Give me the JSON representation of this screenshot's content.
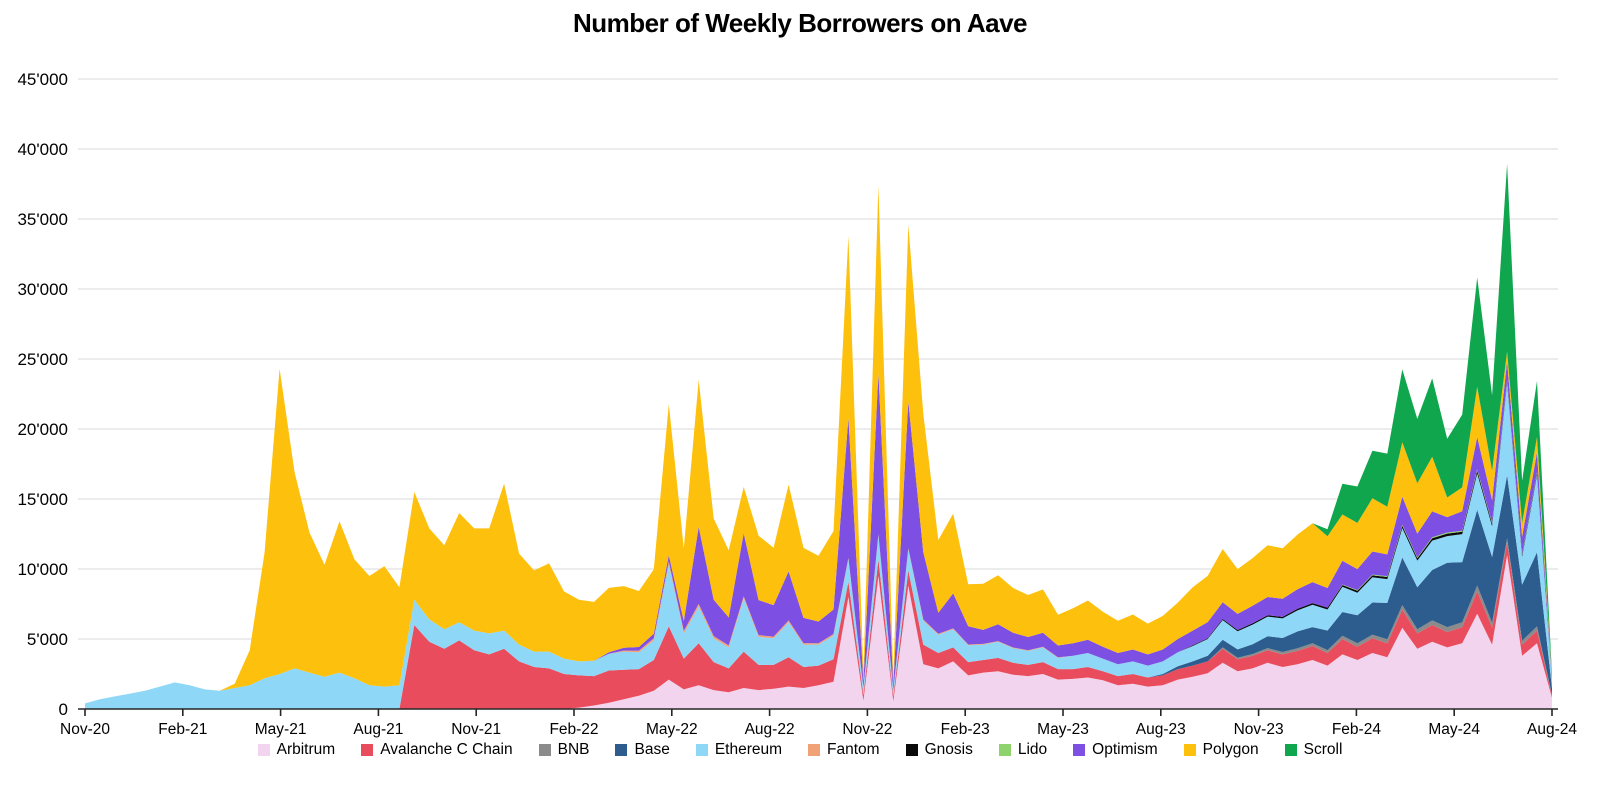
{
  "chart_data": {
    "type": "area",
    "stacked": true,
    "title": "Number of Weekly Borrowers on Aave",
    "x_unit": "week",
    "n_points": 99,
    "x_range": [
      "Nov-20",
      "Aug-24"
    ],
    "x_tick_labels": [
      "Nov-20",
      "Feb-21",
      "May-21",
      "Aug-21",
      "Nov-21",
      "Feb-22",
      "May-22",
      "Aug-22",
      "Nov-22",
      "Feb-23",
      "May-23",
      "Aug-23",
      "Nov-23",
      "Feb-24",
      "May-24",
      "Aug-24"
    ],
    "y_axis": {
      "min": 0,
      "max": 45000,
      "step": 5000,
      "tick_format": "apostrophe-thousands"
    },
    "grid": "horizontal",
    "legend_position": "bottom",
    "series": [
      {
        "name": "Arbitrum",
        "color": "#f2d4ee",
        "values": [
          0,
          0,
          0,
          0,
          0,
          0,
          0,
          0,
          0,
          0,
          0,
          0,
          0,
          0,
          0,
          0,
          0,
          0,
          0,
          0,
          0,
          0,
          0,
          0,
          0,
          0,
          0,
          0,
          0,
          0,
          0,
          0,
          0,
          100,
          250,
          450,
          700,
          950,
          1300,
          2100,
          1400,
          1700,
          1350,
          1200,
          1500,
          1350,
          1450,
          1600,
          1500,
          1700,
          1950,
          8000,
          600,
          9500,
          550,
          8800,
          3200,
          2900,
          3400,
          2400,
          2600,
          2700,
          2450,
          2350,
          2500,
          2100,
          2150,
          2250,
          2050,
          1700,
          1800,
          1600,
          1700,
          2100,
          2300,
          2550,
          3300,
          2700,
          2900,
          3300,
          3000,
          3200,
          3500,
          3100,
          3900,
          3500,
          4000,
          3700,
          5800,
          4300,
          4800,
          4400,
          4700,
          6800,
          4600,
          11000,
          3800,
          4700,
          800
        ]
      },
      {
        "name": "Avalanche C Chain",
        "color": "#e94d5d",
        "values": [
          0,
          0,
          0,
          0,
          0,
          0,
          0,
          0,
          0,
          0,
          0,
          0,
          0,
          0,
          0,
          0,
          0,
          0,
          0,
          0,
          0,
          0,
          6000,
          4800,
          4300,
          4900,
          4200,
          3900,
          4300,
          3400,
          3000,
          2900,
          2500,
          2300,
          2100,
          2300,
          2100,
          1900,
          2200,
          3800,
          2200,
          3000,
          2000,
          1700,
          2600,
          1800,
          1700,
          2100,
          1500,
          1400,
          1600,
          1100,
          400,
          1200,
          350,
          1100,
          1400,
          1100,
          1000,
          950,
          900,
          950,
          850,
          800,
          850,
          750,
          700,
          750,
          650,
          650,
          700,
          650,
          700,
          750,
          800,
          850,
          1000,
          850,
          900,
          900,
          900,
          950,
          1000,
          900,
          1100,
          950,
          1050,
          1000,
          1300,
          1100,
          1200,
          1100,
          1150,
          1600,
          1200,
          900,
          800,
          900,
          150
        ]
      },
      {
        "name": "BNB",
        "color": "#8b8b8b",
        "values": [
          0,
          0,
          0,
          0,
          0,
          0,
          0,
          0,
          0,
          0,
          0,
          0,
          0,
          0,
          0,
          0,
          0,
          0,
          0,
          0,
          0,
          0,
          0,
          0,
          0,
          0,
          0,
          0,
          0,
          0,
          0,
          0,
          0,
          0,
          0,
          0,
          0,
          0,
          0,
          0,
          0,
          0,
          0,
          0,
          0,
          0,
          0,
          0,
          0,
          0,
          0,
          0,
          0,
          0,
          0,
          0,
          0,
          0,
          0,
          0,
          0,
          0,
          0,
          0,
          0,
          0,
          0,
          0,
          0,
          0,
          0,
          0,
          0,
          0,
          0,
          0,
          100,
          110,
          130,
          150,
          170,
          190,
          200,
          210,
          230,
          250,
          260,
          280,
          320,
          300,
          330,
          350,
          340,
          420,
          360,
          300,
          280,
          300,
          50
        ]
      },
      {
        "name": "Base",
        "color": "#2d5d8e",
        "values": [
          0,
          0,
          0,
          0,
          0,
          0,
          0,
          0,
          0,
          0,
          0,
          0,
          0,
          0,
          0,
          0,
          0,
          0,
          0,
          0,
          0,
          0,
          0,
          0,
          0,
          0,
          0,
          0,
          0,
          0,
          0,
          0,
          0,
          0,
          0,
          0,
          0,
          0,
          0,
          0,
          0,
          0,
          0,
          0,
          0,
          0,
          0,
          0,
          0,
          0,
          0,
          0,
          0,
          0,
          0,
          0,
          0,
          0,
          0,
          0,
          0,
          0,
          0,
          0,
          0,
          0,
          0,
          0,
          0,
          0,
          0,
          0,
          100,
          200,
          300,
          400,
          550,
          600,
          700,
          850,
          1000,
          1200,
          1150,
          1400,
          1700,
          2000,
          2300,
          2600,
          3400,
          3000,
          3600,
          4600,
          4300,
          5400,
          4700,
          4500,
          4000,
          5300,
          500
        ]
      },
      {
        "name": "Ethereum",
        "color": "#8ed7f7",
        "values": [
          400,
          700,
          900,
          1100,
          1300,
          1600,
          1900,
          1700,
          1400,
          1300,
          1500,
          1700,
          2200,
          2500,
          2900,
          2600,
          2300,
          2600,
          2200,
          1700,
          1600,
          1700,
          1800,
          1600,
          1400,
          1300,
          1400,
          1500,
          1300,
          1200,
          1100,
          1200,
          1100,
          1000,
          1100,
          1200,
          1300,
          1200,
          1400,
          4400,
          1800,
          2600,
          1700,
          1500,
          3800,
          2000,
          1900,
          2500,
          1600,
          1500,
          1700,
          1600,
          500,
          1700,
          450,
          1500,
          1700,
          1300,
          1300,
          1200,
          1100,
          1150,
          1050,
          1000,
          1050,
          800,
          950,
          1000,
          900,
          850,
          900,
          850,
          900,
          1000,
          1100,
          1200,
          1400,
          1300,
          1400,
          1400,
          1400,
          1500,
          1600,
          1500,
          1800,
          1600,
          1800,
          1700,
          2100,
          1900,
          2100,
          1900,
          2000,
          2600,
          2200,
          6600,
          2000,
          5500,
          400
        ]
      },
      {
        "name": "Fantom",
        "color": "#f0a175",
        "values": [
          0,
          0,
          0,
          0,
          0,
          0,
          0,
          0,
          0,
          0,
          0,
          0,
          0,
          0,
          0,
          0,
          0,
          0,
          0,
          0,
          0,
          0,
          0,
          0,
          0,
          0,
          0,
          0,
          0,
          0,
          0,
          0,
          0,
          0,
          0,
          0,
          80,
          120,
          160,
          250,
          180,
          210,
          160,
          140,
          160,
          130,
          120,
          130,
          110,
          100,
          110,
          90,
          40,
          90,
          35,
          80,
          90,
          70,
          60,
          55,
          50,
          50,
          45,
          40,
          40,
          35,
          0,
          0,
          0,
          0,
          0,
          0,
          0,
          0,
          0,
          0,
          0,
          0,
          0,
          0,
          0,
          0,
          0,
          0,
          0,
          0,
          0,
          0,
          0,
          0,
          0,
          0,
          0,
          0,
          0,
          0,
          0,
          0,
          0
        ]
      },
      {
        "name": "Gnosis",
        "color": "#0a0a0a",
        "values": [
          0,
          0,
          0,
          0,
          0,
          0,
          0,
          0,
          0,
          0,
          0,
          0,
          0,
          0,
          0,
          0,
          0,
          0,
          0,
          0,
          0,
          0,
          0,
          0,
          0,
          0,
          0,
          0,
          0,
          0,
          0,
          0,
          0,
          0,
          0,
          0,
          0,
          0,
          0,
          0,
          0,
          0,
          0,
          0,
          0,
          0,
          0,
          0,
          0,
          0,
          0,
          0,
          0,
          0,
          0,
          0,
          0,
          0,
          0,
          0,
          0,
          0,
          0,
          0,
          0,
          0,
          0,
          0,
          0,
          0,
          0,
          0,
          0,
          0,
          50,
          60,
          80,
          80,
          100,
          100,
          110,
          120,
          115,
          130,
          125,
          140,
          135,
          150,
          170,
          155,
          165,
          175,
          165,
          210,
          175,
          150,
          140,
          150,
          30
        ]
      },
      {
        "name": "Lido",
        "color": "#8fd36c",
        "values": [
          0,
          0,
          0,
          0,
          0,
          0,
          0,
          0,
          0,
          0,
          0,
          0,
          0,
          0,
          0,
          0,
          0,
          0,
          0,
          0,
          0,
          0,
          0,
          0,
          0,
          0,
          0,
          0,
          0,
          0,
          0,
          0,
          0,
          0,
          0,
          0,
          0,
          0,
          0,
          0,
          0,
          0,
          0,
          0,
          0,
          0,
          0,
          0,
          0,
          0,
          0,
          0,
          0,
          0,
          0,
          0,
          0,
          0,
          0,
          0,
          0,
          0,
          0,
          0,
          0,
          0,
          0,
          0,
          0,
          0,
          0,
          0,
          0,
          0,
          0,
          0,
          0,
          0,
          0,
          0,
          0,
          0,
          0,
          0,
          40,
          50,
          55,
          60,
          65,
          70,
          70,
          80,
          75,
          90,
          80,
          80,
          70,
          80,
          20
        ]
      },
      {
        "name": "Optimism",
        "color": "#7d4fe3",
        "values": [
          0,
          0,
          0,
          0,
          0,
          0,
          0,
          0,
          0,
          0,
          0,
          0,
          0,
          0,
          0,
          0,
          0,
          0,
          0,
          0,
          0,
          0,
          0,
          0,
          0,
          0,
          0,
          0,
          0,
          0,
          0,
          0,
          0,
          0,
          0,
          100,
          200,
          260,
          320,
          420,
          700,
          5500,
          2600,
          2000,
          4500,
          2500,
          2250,
          3500,
          1800,
          1550,
          1750,
          10000,
          400,
          11500,
          350,
          10500,
          4800,
          1500,
          2500,
          1300,
          1000,
          1200,
          1050,
          950,
          1000,
          850,
          900,
          950,
          850,
          800,
          850,
          800,
          850,
          950,
          1050,
          1150,
          1200,
          1150,
          1250,
          1300,
          1300,
          1400,
          1500,
          1400,
          1700,
          1500,
          1650,
          1550,
          2000,
          1700,
          1850,
          1100,
          1400,
          2300,
          1600,
          1300,
          1200,
          1400,
          120
        ]
      },
      {
        "name": "Polygon",
        "color": "#fdc00d",
        "values": [
          0,
          0,
          0,
          0,
          0,
          0,
          0,
          0,
          0,
          0,
          300,
          2500,
          9000,
          21800,
          14000,
          10000,
          8000,
          10800,
          8500,
          7800,
          8600,
          7000,
          7700,
          6500,
          6000,
          7800,
          7300,
          7500,
          10500,
          6500,
          5800,
          6300,
          4800,
          4400,
          4200,
          4600,
          4400,
          4000,
          4600,
          10800,
          5200,
          10500,
          5800,
          4800,
          3300,
          4600,
          4100,
          6200,
          5000,
          4700,
          5600,
          13000,
          700,
          13400,
          600,
          12600,
          9900,
          5200,
          5700,
          3000,
          3300,
          3500,
          3200,
          3000,
          3100,
          2200,
          2500,
          2800,
          2500,
          2300,
          2500,
          2200,
          2400,
          2600,
          3100,
          3300,
          3800,
          3200,
          3400,
          3700,
          3600,
          3900,
          4200,
          3700,
          3300,
          3300,
          3800,
          3400,
          3900,
          3600,
          3900,
          1400,
          1700,
          3600,
          2100,
          700,
          1000,
          1100,
          150
        ]
      },
      {
        "name": "Scroll",
        "color": "#10a64d",
        "values": [
          0,
          0,
          0,
          0,
          0,
          0,
          0,
          0,
          0,
          0,
          0,
          0,
          0,
          0,
          0,
          0,
          0,
          0,
          0,
          0,
          0,
          0,
          0,
          0,
          0,
          0,
          0,
          0,
          0,
          0,
          0,
          0,
          0,
          0,
          0,
          0,
          0,
          0,
          0,
          0,
          0,
          0,
          0,
          0,
          0,
          0,
          0,
          0,
          0,
          0,
          0,
          0,
          0,
          0,
          0,
          0,
          0,
          0,
          0,
          0,
          0,
          0,
          0,
          0,
          0,
          0,
          0,
          0,
          0,
          0,
          0,
          0,
          0,
          0,
          0,
          0,
          0,
          0,
          0,
          0,
          0,
          0,
          0,
          500,
          2200,
          2600,
          3400,
          3800,
          5200,
          4600,
          5600,
          4200,
          5200,
          7800,
          5400,
          13400,
          3000,
          4000,
          250
        ]
      }
    ]
  },
  "colors": {
    "background": "#ffffff",
    "gridline": "#d9d9d9",
    "axis": "#262626",
    "text": "#000000"
  }
}
